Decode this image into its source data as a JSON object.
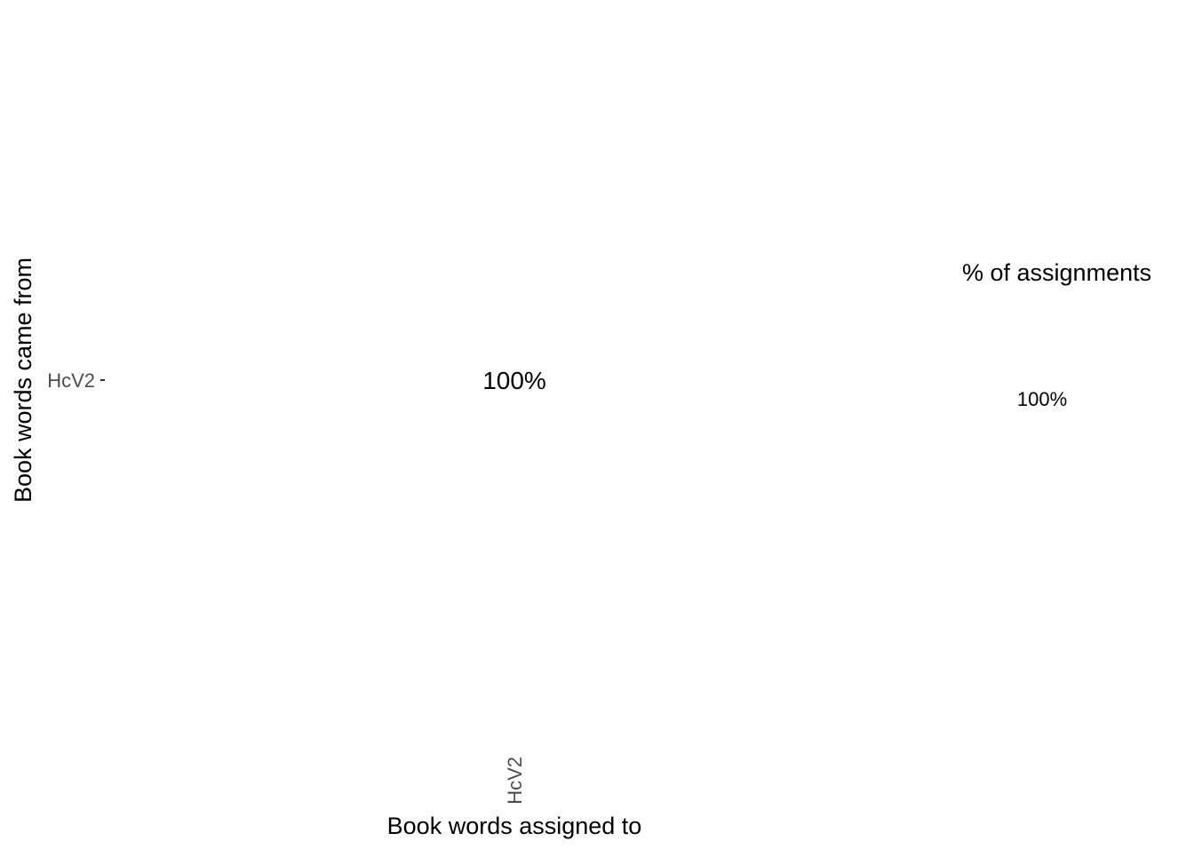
{
  "chart_data": {
    "type": "heatmap",
    "title": "",
    "xlabel": "Book words assigned to",
    "ylabel": "Book words came from",
    "x_categories": [
      "HcV2"
    ],
    "y_categories": [
      "HcV2"
    ],
    "cells": [
      {
        "x": "HcV2",
        "y": "HcV2",
        "value": 100,
        "label": "100%"
      }
    ],
    "fill_color": "#ffffff",
    "grid": false,
    "legend": {
      "title": "% of assignments",
      "placement": "right",
      "entries": [
        "100%"
      ]
    }
  }
}
